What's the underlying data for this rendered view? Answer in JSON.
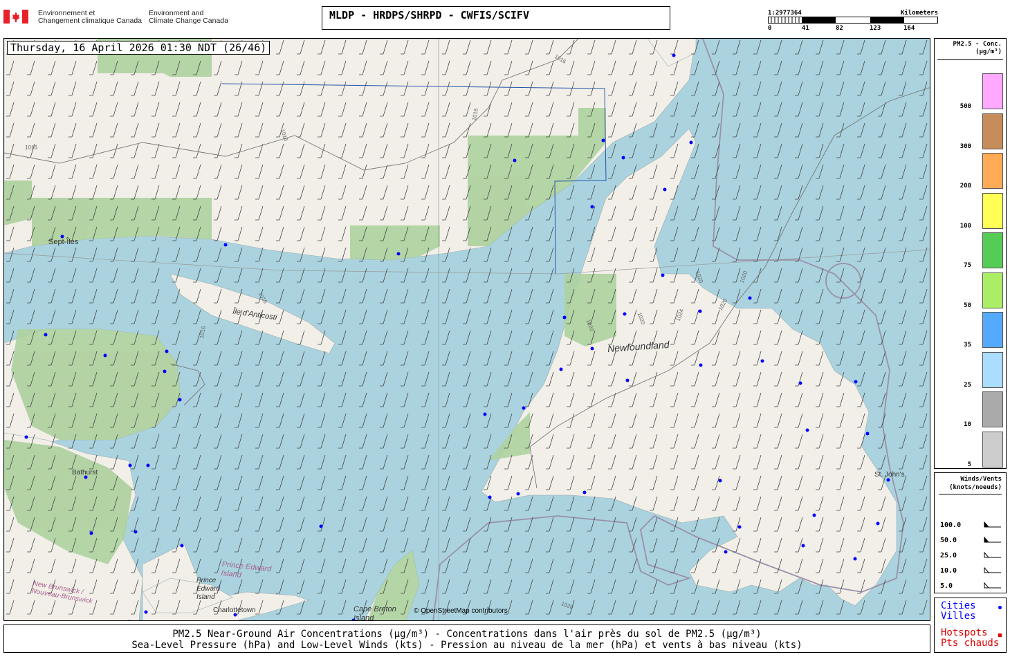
{
  "header": {
    "agency_fr": [
      "Environnement et",
      "Changement climatique Canada"
    ],
    "agency_en": [
      "Environment and",
      "Climate Change Canada"
    ],
    "title": "MLDP - HRDPS/SHRPD - CWFIS/SCIFV"
  },
  "scale": {
    "ratio": "1:2977364",
    "unit": "Kilometers",
    "ticks": [
      "0",
      "41",
      "82",
      "123",
      "164"
    ]
  },
  "map": {
    "datetime": "Thursday, 16 April 2026 01:30 NDT (26/46)",
    "attribution": "© OpenStreetMap contributors",
    "labels": {
      "sept_iles": "Sept-Îles",
      "anticosti": "Île d'Anticosti",
      "newfoundland": "Newfoundland",
      "bathurst": "Bathurst",
      "pei_pink": "Prince Edward Island",
      "pei": "Prince Edward Island",
      "nb": "New Brunswick / Nouveau-Brunswick",
      "charlottetown": "Charlottetown",
      "cape_breton": "Cape Breton Island",
      "st_johns": "St. John's"
    },
    "isobar_labels": [
      "1016",
      "1016",
      "1016",
      "1016",
      "1016",
      "1016",
      "1020",
      "1020",
      "1020",
      "1020",
      "1024",
      "1020",
      "1020"
    ],
    "colors": {
      "water": "#aad3df",
      "land": "#f2efe9",
      "park": "#add19e",
      "city": "#0000ff"
    }
  },
  "legend": {
    "title": "PM2.5 - Conc.",
    "unit": "(µg/m³)",
    "levels": [
      {
        "label": "500",
        "color": "#ffa8ff"
      },
      {
        "label": "300",
        "color": "#c68c5a"
      },
      {
        "label": "200",
        "color": "#ffaa55"
      },
      {
        "label": "100",
        "color": "#ffff55"
      },
      {
        "label": "75",
        "color": "#55cc55"
      },
      {
        "label": "50",
        "color": "#aaee66"
      },
      {
        "label": "35",
        "color": "#55aaff"
      },
      {
        "label": "25",
        "color": "#aaddff"
      },
      {
        "label": "10",
        "color": "#aaaaaa"
      },
      {
        "label": "5",
        "color": "#cccccc"
      }
    ]
  },
  "winds": {
    "title": "Winds/Vents",
    "unit": "(knots/noeuds)",
    "rows": [
      "100.0",
      "50.0",
      "25.0",
      "10.0",
      "5.0"
    ]
  },
  "cities_legend": {
    "cities": "Cities",
    "villes": "Villes",
    "hotspots": "Hotspots",
    "pts": "Pts chauds"
  },
  "caption": {
    "line1": "PM2.5 Near-Ground Air Concentrations (µg/m³) - Concentrations dans l'air près du sol de PM2.5 (µg/m³)",
    "line2": "Sea-Level Pressure (hPa) and Low-Level Winds (kts) - Pression au niveau de la mer (hPa) et vents à bas niveau (kts)"
  }
}
